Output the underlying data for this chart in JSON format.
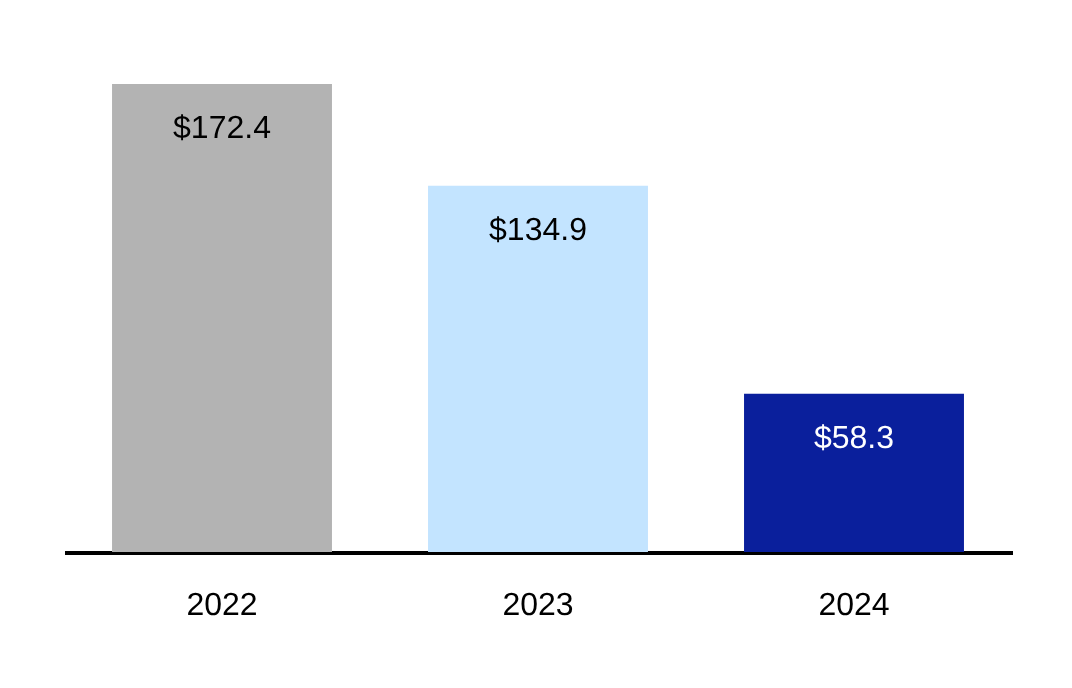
{
  "chart_data": {
    "type": "bar",
    "categories": [
      "2022",
      "2023",
      "2024"
    ],
    "values": [
      172.4,
      134.9,
      58.3
    ],
    "colors": [
      "#b3b3b3",
      "#c3e4ff",
      "#0a1f9c"
    ],
    "value_labels": [
      "$172.4",
      "$134.9",
      "$58.3"
    ]
  }
}
